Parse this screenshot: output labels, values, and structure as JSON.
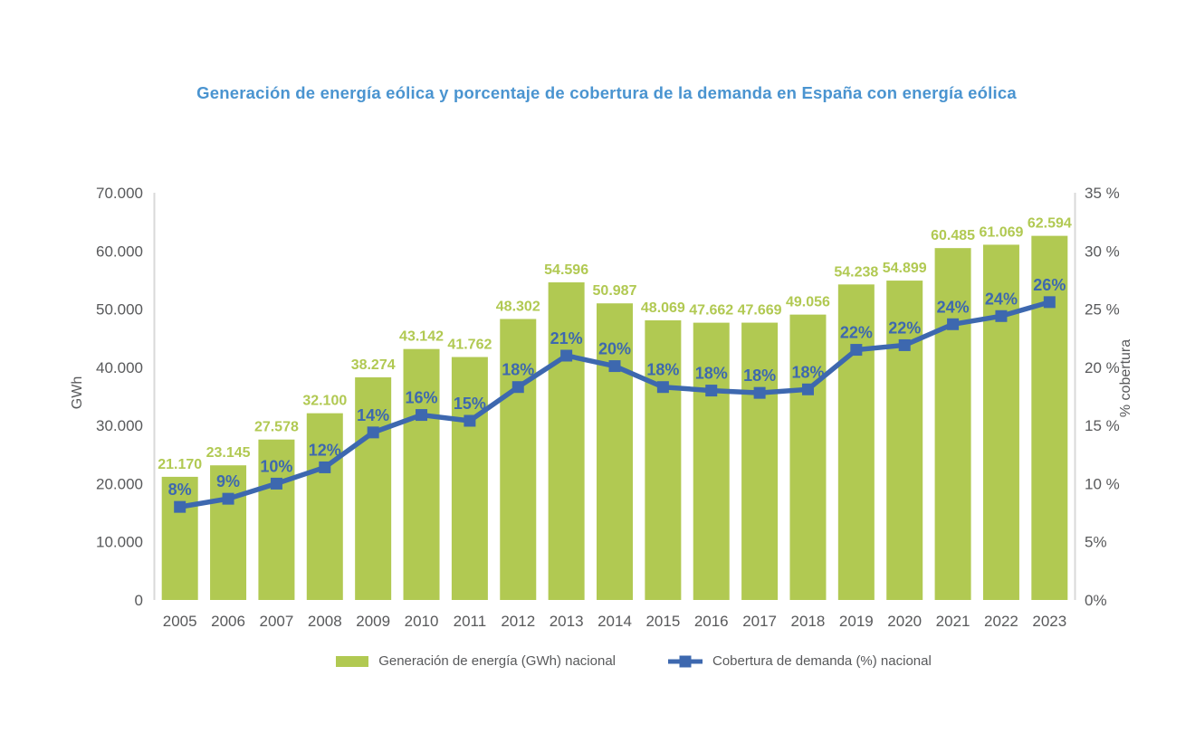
{
  "title": "Generación de energía eólica y porcentaje de cobertura de la demanda en España con energía eólica",
  "colors": {
    "bar": "#b1c952",
    "bar_label": "#b1c952",
    "line": "#3d68af",
    "title": "#4a94d0",
    "axis_text": "#58595b",
    "axis_line": "#d9d9d9",
    "background": "#ffffff"
  },
  "legend": [
    {
      "label": "Generación de energía (GWh) nacional",
      "marker": "green-bar-swatch"
    },
    {
      "label": "Cobertura de demanda (%) nacional",
      "marker": "blue-line-square-swatch"
    }
  ],
  "chart_data": {
    "type": "bar+line combo (dual axis)",
    "grid": false,
    "legend_position": "bottom",
    "categories": [
      "2005",
      "2006",
      "2007",
      "2008",
      "2009",
      "2010",
      "2011",
      "2012",
      "2013",
      "2014",
      "2015",
      "2016",
      "2017",
      "2018",
      "2019",
      "2020",
      "2021",
      "2022",
      "2023"
    ],
    "series": [
      {
        "name": "Generación de energía (GWh) nacional",
        "type": "bar",
        "axis": "left",
        "values": [
          21170,
          23145,
          27578,
          32100,
          38274,
          43142,
          41762,
          48302,
          54596,
          50987,
          48069,
          47662,
          47669,
          49056,
          54238,
          54899,
          60485,
          61069,
          62594
        ],
        "labels": [
          "21.170",
          "23.145",
          "27.578",
          "32.100",
          "38.274",
          "43.142",
          "41.762",
          "48.302",
          "54.596",
          "50.987",
          "48.069",
          "47.662",
          "47.669",
          "49.056",
          "54.238",
          "54.899",
          "60.485",
          "61.069",
          "62.594"
        ]
      },
      {
        "name": "Cobertura de demanda (%) nacional",
        "type": "line",
        "axis": "right",
        "values": [
          8,
          9,
          10,
          12,
          14,
          16,
          15,
          18,
          21,
          20,
          18,
          18,
          18,
          18,
          22,
          22,
          24,
          24,
          26
        ],
        "labels": [
          "8%",
          "9%",
          "10%",
          "12%",
          "14%",
          "16%",
          "15%",
          "18%",
          "21%",
          "20%",
          "18%",
          "18%",
          "18%",
          "18%",
          "22%",
          "22%",
          "24%",
          "24%",
          "26%"
        ],
        "plot_values": [
          8.0,
          8.7,
          10.0,
          11.4,
          14.4,
          15.9,
          15.4,
          18.3,
          21.0,
          20.1,
          18.3,
          18.0,
          17.8,
          18.1,
          21.5,
          21.9,
          23.7,
          24.4,
          25.6
        ]
      }
    ],
    "left_axis": {
      "label": "GWh",
      "min": 0,
      "max": 70000,
      "ticks": [
        {
          "label": "0",
          "value": 0
        },
        {
          "label": "10.000",
          "value": 10000
        },
        {
          "label": "20.000",
          "value": 20000
        },
        {
          "label": "30.000",
          "value": 30000
        },
        {
          "label": "40.000",
          "value": 40000
        },
        {
          "label": "50.000",
          "value": 50000
        },
        {
          "label": "60.000",
          "value": 60000
        },
        {
          "label": "70.000",
          "value": 70000
        }
      ]
    },
    "right_axis": {
      "label": "% cobertura",
      "min": 0,
      "max": 35,
      "ticks": [
        {
          "label": "0%",
          "value": 0
        },
        {
          "label": "5%",
          "value": 5
        },
        {
          "label": "10 %",
          "value": 10
        },
        {
          "label": "15 %",
          "value": 15
        },
        {
          "label": "20 %",
          "value": 20
        },
        {
          "label": "25 %",
          "value": 25
        },
        {
          "label": "30 %",
          "value": 30
        },
        {
          "label": "35 %",
          "value": 35
        }
      ]
    }
  }
}
